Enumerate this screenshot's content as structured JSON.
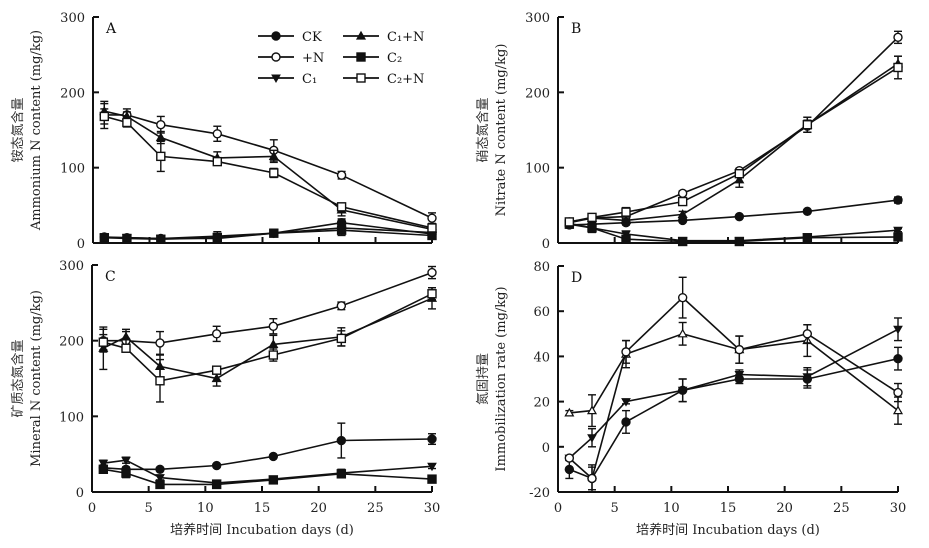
{
  "legend": [
    {
      "key": "CK",
      "label": "CK",
      "marker": "circle-filled"
    },
    {
      "key": "N",
      "label": "+N",
      "marker": "circle-open"
    },
    {
      "key": "C1",
      "label": "C₁",
      "marker": "triangle-down-filled"
    },
    {
      "key": "C1N",
      "label": "C₁+N",
      "marker": "triangle-up-filled"
    },
    {
      "key": "C2",
      "label": "C₂",
      "marker": "square-filled"
    },
    {
      "key": "C2N",
      "label": "C₂+N",
      "marker": "square-open"
    }
  ],
  "chart_data": [
    {
      "id": "A",
      "type": "line",
      "panel_label": "A",
      "ylabel_cn": "铵态氮含量",
      "ylabel": "Ammonium N content (mg/kg)",
      "xlabel": "",
      "xlim": [
        0,
        30
      ],
      "ylim": [
        0,
        300
      ],
      "yticks": [
        0,
        100,
        200,
        300
      ],
      "xticks": [
        0,
        5,
        10,
        15,
        20,
        25,
        30
      ],
      "show_xtick_labels": false,
      "x": [
        1,
        3,
        6,
        11,
        16,
        22,
        30
      ],
      "series": [
        {
          "name": "CK",
          "marker": "circle-filled",
          "values": [
            8,
            7,
            6,
            6,
            13,
            27,
            12
          ],
          "errors": [
            2,
            2,
            2,
            2,
            2,
            5,
            3
          ]
        },
        {
          "name": "+N",
          "marker": "circle-open",
          "values": [
            170,
            170,
            157,
            145,
            123,
            90,
            33
          ],
          "errors": [
            18,
            8,
            11,
            10,
            14,
            5,
            7
          ]
        },
        {
          "name": "C1",
          "marker": "triangle-down-filled",
          "values": [
            7,
            7,
            6,
            9,
            13,
            20,
            14
          ],
          "errors": [
            2,
            2,
            2,
            6,
            2,
            10,
            3
          ]
        },
        {
          "name": "C1+N",
          "marker": "triangle-up-filled",
          "values": [
            175,
            168,
            140,
            113,
            115,
            44,
            18
          ],
          "errors": [
            10,
            6,
            8,
            8,
            8,
            8,
            5
          ]
        },
        {
          "name": "C2",
          "marker": "square-filled",
          "values": [
            7,
            6,
            5,
            7,
            13,
            17,
            10
          ],
          "errors": [
            2,
            2,
            2,
            2,
            2,
            5,
            3
          ]
        },
        {
          "name": "C2+N",
          "marker": "square-open",
          "values": [
            168,
            160,
            115,
            108,
            93,
            48,
            20
          ],
          "errors": [
            10,
            6,
            20,
            4,
            6,
            5,
            5
          ]
        }
      ]
    },
    {
      "id": "B",
      "type": "line",
      "panel_label": "B",
      "ylabel_cn": "硝态氮含量",
      "ylabel": "Nitrate N content (mg/kg)",
      "xlabel": "",
      "xlim": [
        0,
        30
      ],
      "ylim": [
        0,
        300
      ],
      "yticks": [
        0,
        100,
        200,
        300
      ],
      "xticks": [
        0,
        5,
        10,
        15,
        20,
        25,
        30
      ],
      "show_xtick_labels": false,
      "x": [
        1,
        3,
        6,
        11,
        16,
        22,
        30
      ],
      "series": [
        {
          "name": "CK",
          "marker": "circle-filled",
          "values": [
            24,
            25,
            27,
            30,
            35,
            42,
            57
          ],
          "errors": [
            4,
            3,
            3,
            2,
            2,
            2,
            4
          ]
        },
        {
          "name": "+N",
          "marker": "circle-open",
          "values": [
            28,
            33,
            35,
            66,
            96,
            155,
            273
          ],
          "errors": [
            4,
            3,
            4,
            3,
            3,
            8,
            8
          ]
        },
        {
          "name": "C1",
          "marker": "triangle-down-filled",
          "values": [
            26,
            20,
            12,
            3,
            3,
            8,
            17
          ],
          "errors": [
            6,
            6,
            4,
            1,
            1,
            2,
            2
          ]
        },
        {
          "name": "C1+N",
          "marker": "triangle-up-filled",
          "values": [
            27,
            33,
            30,
            38,
            84,
            157,
            238
          ],
          "errors": [
            4,
            3,
            3,
            4,
            10,
            10,
            10
          ]
        },
        {
          "name": "C2",
          "marker": "square-filled",
          "values": [
            25,
            20,
            5,
            2,
            2,
            7,
            8
          ],
          "errors": [
            5,
            5,
            2,
            1,
            1,
            2,
            2
          ]
        },
        {
          "name": "C2+N",
          "marker": "square-open",
          "values": [
            28,
            34,
            41,
            55,
            92,
            157,
            233
          ],
          "errors": [
            3,
            3,
            6,
            4,
            4,
            10,
            15
          ]
        }
      ]
    },
    {
      "id": "C",
      "type": "line",
      "panel_label": "C",
      "ylabel_cn": "矿质态氮含量",
      "ylabel": "Mineral N content (mg/kg)",
      "xlabel": "培养时间 Incubation days (d)",
      "xlim": [
        0,
        30
      ],
      "ylim": [
        0,
        300
      ],
      "yticks": [
        0,
        100,
        200,
        300
      ],
      "xticks": [
        0,
        5,
        10,
        15,
        20,
        25,
        30
      ],
      "show_xtick_labels": true,
      "x": [
        1,
        3,
        6,
        11,
        16,
        22,
        30
      ],
      "series": [
        {
          "name": "CK",
          "marker": "circle-filled",
          "values": [
            32,
            30,
            30,
            35,
            47,
            68,
            70
          ],
          "errors": [
            3,
            3,
            2,
            2,
            2,
            23,
            7
          ]
        },
        {
          "name": "+N",
          "marker": "circle-open",
          "values": [
            200,
            200,
            197,
            209,
            219,
            246,
            290
          ],
          "errors": [
            15,
            12,
            15,
            10,
            10,
            5,
            8
          ]
        },
        {
          "name": "C1",
          "marker": "triangle-down-filled",
          "values": [
            38,
            42,
            19,
            12,
            17,
            25,
            34
          ],
          "errors": [
            4,
            4,
            3,
            3,
            2,
            5,
            3
          ]
        },
        {
          "name": "C1+N",
          "marker": "triangle-up-filled",
          "values": [
            190,
            205,
            166,
            150,
            195,
            205,
            256
          ],
          "errors": [
            28,
            10,
            15,
            10,
            12,
            12,
            14
          ]
        },
        {
          "name": "C2",
          "marker": "square-filled",
          "values": [
            30,
            25,
            10,
            10,
            16,
            24,
            17
          ],
          "errors": [
            4,
            6,
            3,
            5,
            2,
            5,
            3
          ]
        },
        {
          "name": "C2+N",
          "marker": "square-open",
          "values": [
            198,
            190,
            147,
            161,
            181,
            203,
            262
          ],
          "errors": [
            10,
            5,
            28,
            5,
            8,
            10,
            8
          ]
        }
      ]
    },
    {
      "id": "D",
      "type": "line",
      "panel_label": "D",
      "ylabel_cn": "氮固持量",
      "ylabel": "Immobilization rate (mg/kg)",
      "xlabel": "培养时间 Incubation days (d)",
      "xlim": [
        0,
        30
      ],
      "ylim": [
        -20,
        80
      ],
      "yticks": [
        -20,
        0,
        20,
        40,
        60,
        80
      ],
      "xticks": [
        0,
        5,
        10,
        15,
        20,
        25,
        30
      ],
      "show_xtick_labels": true,
      "x": [
        1,
        3,
        6,
        11,
        16,
        22,
        30
      ],
      "series": [
        {
          "name": "C1",
          "marker": "triangle-down-filled",
          "values": [
            -5,
            4,
            20,
            25,
            32,
            31,
            52
          ],
          "errors": [
            1,
            4,
            1,
            5,
            2,
            4,
            5
          ]
        },
        {
          "name": "C1+N",
          "marker": "triangle-up-filled-open",
          "values": [
            15,
            16,
            41,
            50,
            43,
            47,
            16
          ],
          "errors": [
            1,
            7,
            6,
            5,
            6,
            7,
            6
          ]
        },
        {
          "name": "C2",
          "marker": "circle-filled",
          "values": [
            -10,
            -14,
            11,
            25,
            30,
            30,
            39
          ],
          "errors": [
            4,
            5,
            5,
            5,
            2,
            4,
            5
          ]
        },
        {
          "name": "C2+N",
          "marker": "circle-open",
          "values": [
            -5,
            -14,
            42,
            66,
            43,
            50,
            24
          ],
          "errors": [
            1,
            6,
            5,
            9,
            6,
            4,
            4
          ]
        }
      ]
    }
  ]
}
